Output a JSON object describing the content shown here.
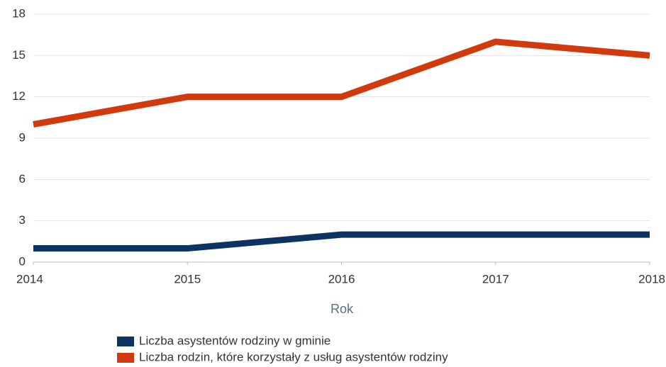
{
  "chart_data": {
    "type": "line",
    "x": [
      2014,
      2015,
      2016,
      2017,
      2018
    ],
    "xlabel": "Rok",
    "series": [
      {
        "name": "Liczba asystentów rodziny w gminie",
        "color": "#0b3463",
        "values": [
          1,
          1,
          2,
          2,
          2
        ]
      },
      {
        "name": "Liczba rodzin, które korzystały z usług asystentów rodziny",
        "color": "#d03a0c",
        "values": [
          10,
          12,
          12,
          16,
          15
        ]
      }
    ],
    "xlim": [
      2014,
      2018
    ],
    "xticks": [
      2014,
      2015,
      2016,
      2017,
      2018
    ],
    "ylim": [
      0,
      18
    ],
    "yticks": [
      0,
      3,
      6,
      9,
      12,
      15,
      18
    ],
    "grid": true
  }
}
